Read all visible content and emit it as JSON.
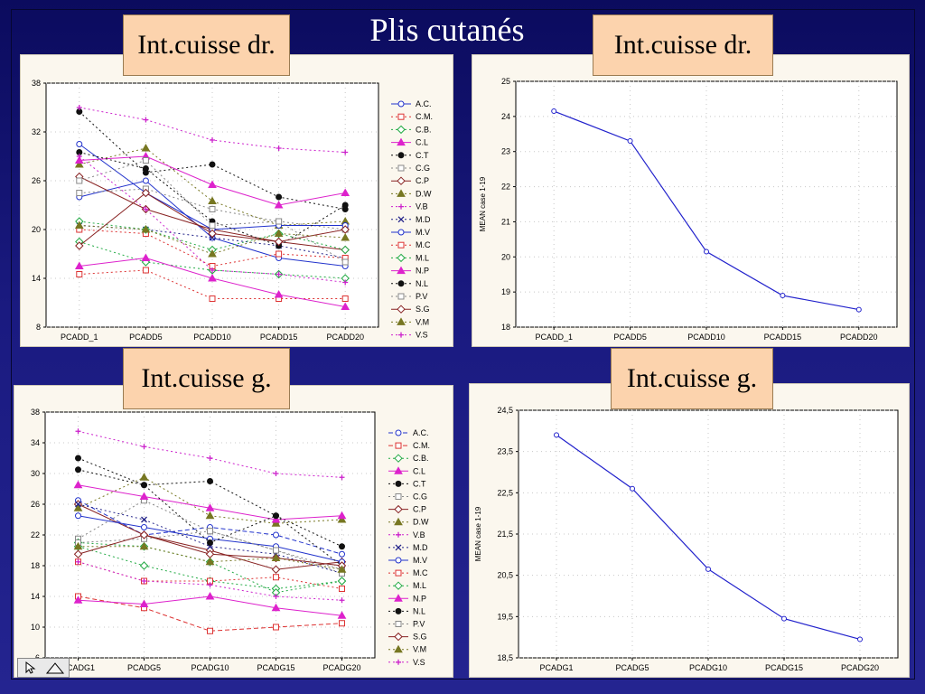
{
  "slide": {
    "title": "Plis cutanés",
    "labels": [
      "Int.cuisse dr.",
      "Int.cuisse dr.",
      "Int.cuisse g.",
      "Int.cuisse g."
    ]
  },
  "colors": {
    "background": "#1a1a80",
    "panel": "#fbf7ee",
    "label_box": "#fcd3ad",
    "mean_line": "#2222cc"
  },
  "chart_data": [
    {
      "type": "line",
      "categories": [
        "PCADD_1",
        "PCADD5",
        "PCADD10",
        "PCADD15",
        "PCADD20"
      ],
      "ylim": [
        8,
        38
      ],
      "yticks": [
        8,
        14,
        20,
        26,
        32,
        38
      ],
      "grid": true,
      "legend_position": "right",
      "series": [
        {
          "name": "A.C.",
          "values": [
            24,
            26,
            19,
            16.5,
            15.5
          ],
          "color": "#2233cc",
          "marker": "circle",
          "dash": "solid"
        },
        {
          "name": "C.M.",
          "values": [
            14.5,
            15,
            11.5,
            11.5,
            11.5
          ],
          "color": "#dd3333",
          "marker": "square",
          "dash": "dotted"
        },
        {
          "name": "C.B.",
          "values": [
            18.5,
            16,
            15,
            14.5,
            14
          ],
          "color": "#22aa44",
          "marker": "diamond",
          "dash": "dotted"
        },
        {
          "name": "C.L",
          "values": [
            15.5,
            16.5,
            14,
            12,
            10.5
          ],
          "color": "#dd22cc",
          "marker": "triangle",
          "dash": "solid"
        },
        {
          "name": "C.T",
          "values": [
            34.5,
            27,
            28,
            24,
            22.5
          ],
          "color": "#111111",
          "marker": "dot",
          "dash": "dotted"
        },
        {
          "name": "C.G",
          "values": [
            24.5,
            25,
            22.5,
            21,
            20
          ],
          "color": "#888888",
          "marker": "square",
          "dash": "dotted"
        },
        {
          "name": "C.P",
          "values": [
            26.5,
            22.5,
            20,
            18.5,
            17.5
          ],
          "color": "#882222",
          "marker": "diamond",
          "dash": "solid"
        },
        {
          "name": "D.W",
          "values": [
            28,
            30,
            23.5,
            20.5,
            21
          ],
          "color": "#777722",
          "marker": "triangle",
          "dash": "dotted"
        },
        {
          "name": "V.B",
          "values": [
            35,
            33.5,
            31,
            30,
            29.5
          ],
          "color": "#cc22cc",
          "marker": "plus",
          "dash": "dotted"
        },
        {
          "name": "M.D",
          "values": [
            20.5,
            20,
            19,
            18,
            16.5
          ],
          "color": "#222288",
          "marker": "x",
          "dash": "dotted"
        },
        {
          "name": "M.V",
          "values": [
            30.5,
            24.5,
            20,
            20.5,
            20.5
          ],
          "color": "#2233cc",
          "marker": "circle",
          "dash": "solid"
        },
        {
          "name": "M.C",
          "values": [
            20,
            19.5,
            15.5,
            17,
            16.5
          ],
          "color": "#dd3333",
          "marker": "square",
          "dash": "dotted"
        },
        {
          "name": "M.L",
          "values": [
            21,
            20,
            17.5,
            19.5,
            17.5
          ],
          "color": "#22aa44",
          "marker": "diamond",
          "dash": "dotted"
        },
        {
          "name": "N.P",
          "values": [
            28.5,
            29,
            25.5,
            23,
            24.5
          ],
          "color": "#dd22cc",
          "marker": "triangle",
          "dash": "solid"
        },
        {
          "name": "N.L",
          "values": [
            29.5,
            27.5,
            21,
            18,
            23
          ],
          "color": "#111111",
          "marker": "dot",
          "dash": "dotted"
        },
        {
          "name": "P.V",
          "values": [
            26,
            28.5,
            20.5,
            21,
            16
          ],
          "color": "#888888",
          "marker": "square",
          "dash": "dotted"
        },
        {
          "name": "S.G",
          "values": [
            18,
            24.5,
            19.5,
            18.5,
            20
          ],
          "color": "#882222",
          "marker": "diamond",
          "dash": "solid"
        },
        {
          "name": "V.M",
          "values": [
            20.5,
            20,
            17,
            19.5,
            19
          ],
          "color": "#777722",
          "marker": "triangle",
          "dash": "dotted"
        },
        {
          "name": "V.S",
          "values": [
            29,
            22.5,
            15,
            14.5,
            13.5
          ],
          "color": "#cc22cc",
          "marker": "plus",
          "dash": "dotted"
        }
      ]
    },
    {
      "type": "line",
      "categories": [
        "PCADD_1",
        "PCADD5",
        "PCADD10",
        "PCADD15",
        "PCADD20"
      ],
      "ylabel": "MEAN case 1-19",
      "ylim": [
        18,
        25
      ],
      "yticks": [
        18,
        19,
        20,
        21,
        22,
        23,
        24,
        25
      ],
      "grid": true,
      "values": [
        24.15,
        23.3,
        20.15,
        18.9,
        18.5
      ]
    },
    {
      "type": "line",
      "categories": [
        "PCADG1",
        "PCADG5",
        "PCADG10",
        "PCADG15",
        "PCADG20"
      ],
      "ylim": [
        6,
        38
      ],
      "yticks": [
        6,
        10,
        14,
        18,
        22,
        26,
        30,
        34,
        38
      ],
      "grid": true,
      "legend_position": "right",
      "series": [
        {
          "name": "A.C.",
          "values": [
            26.5,
            22,
            23,
            22,
            19.5
          ],
          "color": "#2233cc",
          "marker": "circle",
          "dash": "dashed"
        },
        {
          "name": "C.M.",
          "values": [
            14,
            12.5,
            9.5,
            10,
            10.5
          ],
          "color": "#dd3333",
          "marker": "square",
          "dash": "dashed"
        },
        {
          "name": "C.B.",
          "values": [
            20.5,
            18,
            16,
            15,
            16
          ],
          "color": "#22aa44",
          "marker": "diamond",
          "dash": "dotted"
        },
        {
          "name": "C.L",
          "values": [
            13.5,
            13,
            14,
            12.5,
            11.5
          ],
          "color": "#dd22cc",
          "marker": "triangle",
          "dash": "solid"
        },
        {
          "name": "C.T",
          "values": [
            30.5,
            28.5,
            29,
            24.5,
            20.5
          ],
          "color": "#111111",
          "marker": "dot",
          "dash": "dotted"
        },
        {
          "name": "C.G",
          "values": [
            21.5,
            26.5,
            22.5,
            20,
            17.5
          ],
          "color": "#888888",
          "marker": "square",
          "dash": "dotted"
        },
        {
          "name": "C.P",
          "values": [
            26,
            22,
            20,
            17.5,
            18.5
          ],
          "color": "#882222",
          "marker": "diamond",
          "dash": "solid"
        },
        {
          "name": "D.W",
          "values": [
            25.5,
            29.5,
            24.5,
            23.5,
            24
          ],
          "color": "#777722",
          "marker": "triangle",
          "dash": "dotted"
        },
        {
          "name": "V.B",
          "values": [
            35.5,
            33.5,
            32,
            30,
            29.5
          ],
          "color": "#cc22cc",
          "marker": "plus",
          "dash": "dotted"
        },
        {
          "name": "M.D",
          "values": [
            26,
            24,
            20.5,
            19.5,
            17
          ],
          "color": "#222288",
          "marker": "x",
          "dash": "dotted"
        },
        {
          "name": "M.V",
          "values": [
            24.5,
            23,
            21.5,
            20.5,
            18.5
          ],
          "color": "#2233cc",
          "marker": "circle",
          "dash": "solid"
        },
        {
          "name": "M.C",
          "values": [
            18.5,
            16,
            16,
            16.5,
            15
          ],
          "color": "#dd3333",
          "marker": "square",
          "dash": "dotted"
        },
        {
          "name": "M.L",
          "values": [
            21,
            20.5,
            18.5,
            14.5,
            16
          ],
          "color": "#22aa44",
          "marker": "diamond",
          "dash": "dotted"
        },
        {
          "name": "N.P",
          "values": [
            28.5,
            27,
            25.5,
            24,
            24.5
          ],
          "color": "#dd22cc",
          "marker": "triangle",
          "dash": "solid"
        },
        {
          "name": "N.L",
          "values": [
            32,
            28.5,
            21,
            24.5,
            18
          ],
          "color": "#111111",
          "marker": "dot",
          "dash": "dotted"
        },
        {
          "name": "P.V",
          "values": [
            21,
            21.5,
            22.5,
            20,
            17
          ],
          "color": "#888888",
          "marker": "square",
          "dash": "dotted"
        },
        {
          "name": "S.G",
          "values": [
            19.5,
            22,
            19.5,
            19,
            18
          ],
          "color": "#882222",
          "marker": "diamond",
          "dash": "solid"
        },
        {
          "name": "V.M",
          "values": [
            20.5,
            20.5,
            18.5,
            19,
            17.5
          ],
          "color": "#777722",
          "marker": "triangle",
          "dash": "dotted"
        },
        {
          "name": "V.S",
          "values": [
            18.5,
            16,
            15.5,
            14,
            13.5
          ],
          "color": "#cc22cc",
          "marker": "plus",
          "dash": "dotted"
        }
      ]
    },
    {
      "type": "line",
      "categories": [
        "PCADG1",
        "PCADG5",
        "PCADG10",
        "PCADG15",
        "PCADG20"
      ],
      "ylabel": "MEAN case 1-19",
      "ylim": [
        18.5,
        24.5
      ],
      "yticks": [
        "18,5",
        "19,5",
        "20,5",
        "21,5",
        "22,5",
        "23,5",
        "24,5"
      ],
      "ytick_values": [
        18.5,
        19.5,
        20.5,
        21.5,
        22.5,
        23.5,
        24.5
      ],
      "grid": true,
      "values": [
        23.9,
        22.6,
        20.65,
        19.45,
        18.95
      ]
    }
  ]
}
